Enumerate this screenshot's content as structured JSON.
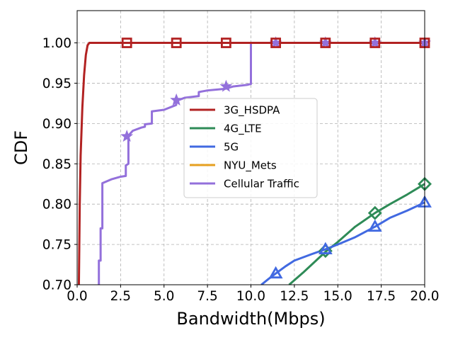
{
  "chart_data": {
    "type": "line",
    "title": "",
    "xlabel": "Bandwidth(Mbps)",
    "ylabel": "CDF",
    "xlim": [
      0,
      20
    ],
    "ylim": [
      0.7,
      1.04
    ],
    "x_ticks": [
      "0.0",
      "2.5",
      "5.0",
      "7.5",
      "10.0",
      "12.5",
      "15.0",
      "17.5",
      "20.0"
    ],
    "y_ticks": [
      "0.70",
      "0.75",
      "0.80",
      "0.85",
      "0.90",
      "0.95",
      "1.00"
    ],
    "grid": true,
    "grid_style": "dashed",
    "legend_position": "center-right",
    "series": [
      {
        "name": "3G_HSDPA",
        "color": "#b22222",
        "marker": "square",
        "points": [
          [
            0.1,
            0.7
          ],
          [
            0.15,
            0.8
          ],
          [
            0.2,
            0.86
          ],
          [
            0.3,
            0.92
          ],
          [
            0.4,
            0.96
          ],
          [
            0.5,
            0.985
          ],
          [
            0.6,
            0.997
          ],
          [
            0.7,
            1.0
          ],
          [
            20.0,
            1.0
          ]
        ],
        "marker_points": [
          [
            2.86,
            1.0
          ],
          [
            5.71,
            1.0
          ],
          [
            8.57,
            1.0
          ],
          [
            11.43,
            1.0
          ],
          [
            14.29,
            1.0
          ],
          [
            17.14,
            1.0
          ],
          [
            20.0,
            1.0
          ]
        ]
      },
      {
        "name": "4G_LTE",
        "color": "#2e8b57",
        "marker": "diamond",
        "points": [
          [
            12.2,
            0.7
          ],
          [
            13.0,
            0.715
          ],
          [
            14.0,
            0.735
          ],
          [
            14.3,
            0.741
          ],
          [
            15.0,
            0.753
          ],
          [
            16.0,
            0.772
          ],
          [
            17.14,
            0.789
          ],
          [
            18.0,
            0.8
          ],
          [
            19.0,
            0.812
          ],
          [
            20.0,
            0.825
          ]
        ],
        "marker_points": [
          [
            14.29,
            0.742
          ],
          [
            17.14,
            0.789
          ],
          [
            20.0,
            0.825
          ]
        ]
      },
      {
        "name": "5G",
        "color": "#4169e1",
        "marker": "triangle",
        "points": [
          [
            10.6,
            0.7
          ],
          [
            11.0,
            0.707
          ],
          [
            11.43,
            0.714
          ],
          [
            12.0,
            0.723
          ],
          [
            12.5,
            0.73
          ],
          [
            13.5,
            0.738
          ],
          [
            14.29,
            0.744
          ],
          [
            15.0,
            0.75
          ],
          [
            16.0,
            0.759
          ],
          [
            17.14,
            0.772
          ],
          [
            18.0,
            0.783
          ],
          [
            19.0,
            0.792
          ],
          [
            20.0,
            0.802
          ]
        ],
        "marker_points": [
          [
            11.43,
            0.714
          ],
          [
            14.29,
            0.744
          ],
          [
            17.14,
            0.772
          ],
          [
            20.0,
            0.802
          ]
        ]
      },
      {
        "name": "NYU_Mets",
        "color": "#e6a020",
        "marker": "none",
        "points": [],
        "marker_points": []
      },
      {
        "name": "Cellular Traffic",
        "color": "#9370db",
        "marker": "star",
        "points": [
          [
            1.25,
            0.7
          ],
          [
            1.25,
            0.73
          ],
          [
            1.35,
            0.73
          ],
          [
            1.35,
            0.77
          ],
          [
            1.45,
            0.77
          ],
          [
            1.45,
            0.826
          ],
          [
            2.0,
            0.831
          ],
          [
            2.5,
            0.834
          ],
          [
            2.8,
            0.835
          ],
          [
            2.8,
            0.848
          ],
          [
            2.95,
            0.85
          ],
          [
            2.95,
            0.885
          ],
          [
            3.2,
            0.891
          ],
          [
            3.7,
            0.895
          ],
          [
            3.9,
            0.896
          ],
          [
            3.9,
            0.899
          ],
          [
            4.3,
            0.9
          ],
          [
            4.3,
            0.915
          ],
          [
            5.0,
            0.917
          ],
          [
            5.7,
            0.923
          ],
          [
            5.7,
            0.928
          ],
          [
            6.2,
            0.932
          ],
          [
            7.0,
            0.934
          ],
          [
            7.0,
            0.939
          ],
          [
            7.5,
            0.941
          ],
          [
            8.5,
            0.943
          ],
          [
            9.0,
            0.946
          ],
          [
            9.8,
            0.948
          ],
          [
            10.0,
            0.949
          ],
          [
            10.0,
            1.0
          ],
          [
            20.0,
            1.0
          ]
        ],
        "marker_points": [
          [
            2.86,
            0.884
          ],
          [
            5.71,
            0.929
          ],
          [
            8.57,
            0.946
          ],
          [
            11.43,
            1.0
          ],
          [
            14.29,
            1.0
          ],
          [
            17.14,
            1.0
          ],
          [
            20.0,
            1.0
          ]
        ]
      }
    ]
  }
}
